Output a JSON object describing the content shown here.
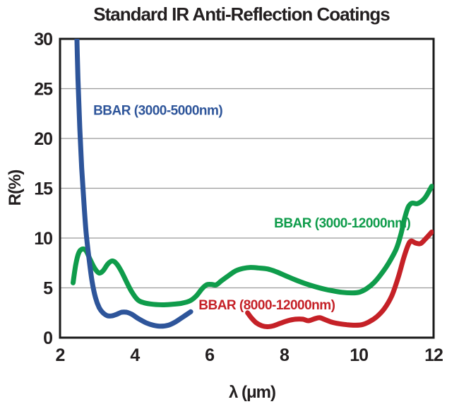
{
  "figure": {
    "title": "Standard IR Anti-Reflection Coatings"
  },
  "chart_data": {
    "type": "line",
    "title": "Standard IR Anti-Reflection Coatings",
    "xlabel": "λ (μm)",
    "ylabel": "R(%)",
    "xlim": [
      2,
      12
    ],
    "ylim": [
      0,
      30
    ],
    "x_ticks": [
      2,
      4,
      6,
      8,
      10,
      12
    ],
    "y_ticks": [
      0,
      5,
      10,
      15,
      20,
      25,
      30
    ],
    "grid": "horizontal-only",
    "legend": "inline-colored-labels",
    "axis_color": "#1a1a1a",
    "grid_color": "#9a9a9a",
    "draw_order": [
      1,
      2,
      0
    ],
    "series": [
      {
        "name": "BBAR (3000-5000nm)",
        "color": "#2e559a",
        "label_pos": {
          "x": 2.89,
          "y": 22.8
        },
        "points": [
          [
            2.44,
            32
          ],
          [
            2.48,
            26
          ],
          [
            2.53,
            21
          ],
          [
            2.58,
            17
          ],
          [
            2.64,
            13.5
          ],
          [
            2.7,
            10.5
          ],
          [
            2.78,
            7.8
          ],
          [
            2.86,
            5.6
          ],
          [
            2.95,
            4.0
          ],
          [
            3.05,
            3.0
          ],
          [
            3.15,
            2.5
          ],
          [
            3.27,
            2.2
          ],
          [
            3.4,
            2.2
          ],
          [
            3.52,
            2.35
          ],
          [
            3.65,
            2.55
          ],
          [
            3.78,
            2.55
          ],
          [
            3.92,
            2.35
          ],
          [
            4.08,
            1.95
          ],
          [
            4.3,
            1.5
          ],
          [
            4.5,
            1.25
          ],
          [
            4.7,
            1.15
          ],
          [
            4.9,
            1.25
          ],
          [
            5.1,
            1.6
          ],
          [
            5.3,
            2.1
          ],
          [
            5.5,
            2.6
          ]
        ]
      },
      {
        "name": "BBAR (3000-12000nm)",
        "color": "#0f9c4b",
        "label_pos": {
          "x": 7.73,
          "y": 11.5
        },
        "points": [
          [
            2.35,
            5.5
          ],
          [
            2.42,
            7.3
          ],
          [
            2.5,
            8.5
          ],
          [
            2.6,
            8.9
          ],
          [
            2.7,
            8.7
          ],
          [
            2.8,
            7.9
          ],
          [
            2.92,
            7.0
          ],
          [
            3.04,
            6.5
          ],
          [
            3.15,
            6.7
          ],
          [
            3.28,
            7.4
          ],
          [
            3.4,
            7.7
          ],
          [
            3.52,
            7.4
          ],
          [
            3.65,
            6.6
          ],
          [
            3.78,
            5.6
          ],
          [
            3.92,
            4.6
          ],
          [
            4.08,
            3.8
          ],
          [
            4.25,
            3.5
          ],
          [
            4.5,
            3.35
          ],
          [
            4.75,
            3.3
          ],
          [
            5.0,
            3.35
          ],
          [
            5.25,
            3.45
          ],
          [
            5.48,
            3.7
          ],
          [
            5.65,
            4.2
          ],
          [
            5.8,
            4.9
          ],
          [
            5.92,
            5.3
          ],
          [
            6.05,
            5.35
          ],
          [
            6.18,
            5.3
          ],
          [
            6.32,
            5.7
          ],
          [
            6.5,
            6.2
          ],
          [
            6.7,
            6.7
          ],
          [
            6.9,
            6.95
          ],
          [
            7.1,
            7.05
          ],
          [
            7.3,
            7.0
          ],
          [
            7.55,
            6.9
          ],
          [
            7.8,
            6.6
          ],
          [
            8.05,
            6.2
          ],
          [
            8.3,
            5.8
          ],
          [
            8.55,
            5.45
          ],
          [
            8.8,
            5.15
          ],
          [
            9.05,
            4.9
          ],
          [
            9.3,
            4.7
          ],
          [
            9.55,
            4.55
          ],
          [
            9.8,
            4.5
          ],
          [
            10.0,
            4.55
          ],
          [
            10.2,
            4.9
          ],
          [
            10.4,
            5.5
          ],
          [
            10.6,
            6.4
          ],
          [
            10.8,
            7.5
          ],
          [
            11.0,
            8.9
          ],
          [
            11.12,
            10.3
          ],
          [
            11.22,
            11.9
          ],
          [
            11.32,
            13.1
          ],
          [
            11.42,
            13.5
          ],
          [
            11.55,
            13.45
          ],
          [
            11.68,
            13.7
          ],
          [
            11.8,
            14.2
          ],
          [
            11.95,
            15.2
          ]
        ]
      },
      {
        "name": "BBAR (8000-12000nm)",
        "color": "#c52127",
        "label_pos": {
          "x": 5.71,
          "y": 3.25
        },
        "points": [
          [
            7.02,
            2.5
          ],
          [
            7.12,
            2.0
          ],
          [
            7.25,
            1.5
          ],
          [
            7.4,
            1.2
          ],
          [
            7.55,
            1.1
          ],
          [
            7.72,
            1.2
          ],
          [
            7.9,
            1.45
          ],
          [
            8.1,
            1.7
          ],
          [
            8.3,
            1.85
          ],
          [
            8.5,
            1.85
          ],
          [
            8.65,
            1.7
          ],
          [
            8.82,
            1.9
          ],
          [
            8.95,
            2.0
          ],
          [
            9.1,
            1.8
          ],
          [
            9.28,
            1.55
          ],
          [
            9.48,
            1.4
          ],
          [
            9.68,
            1.3
          ],
          [
            9.88,
            1.25
          ],
          [
            10.08,
            1.3
          ],
          [
            10.28,
            1.6
          ],
          [
            10.48,
            2.1
          ],
          [
            10.68,
            2.9
          ],
          [
            10.88,
            4.2
          ],
          [
            11.05,
            6.0
          ],
          [
            11.2,
            8.0
          ],
          [
            11.32,
            9.3
          ],
          [
            11.4,
            9.7
          ],
          [
            11.52,
            9.5
          ],
          [
            11.65,
            9.45
          ],
          [
            11.78,
            9.9
          ],
          [
            11.95,
            10.6
          ]
        ]
      }
    ]
  }
}
